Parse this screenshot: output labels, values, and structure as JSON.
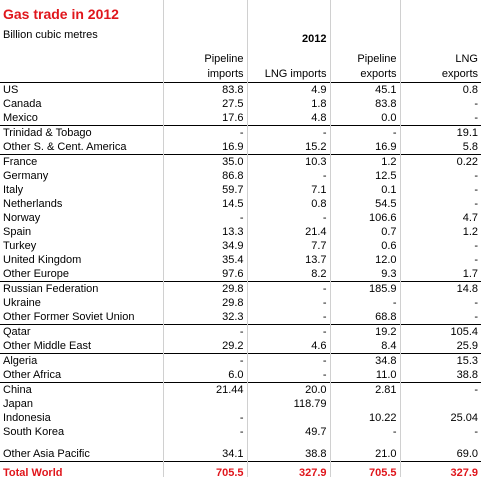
{
  "header": {
    "title": "Gas trade in 2012",
    "unit": "Billion cubic metres",
    "year": "2012",
    "columns": [
      "Pipeline imports",
      "LNG imports",
      "Pipeline exports",
      "LNG exports"
    ]
  },
  "table": {
    "groups": [
      [
        [
          "US",
          "83.8",
          "4.9",
          "45.1",
          "0.8"
        ],
        [
          "Canada",
          "27.5",
          "1.8",
          "83.8",
          "-"
        ],
        [
          "Mexico",
          "17.6",
          "4.8",
          "0.0",
          "-"
        ]
      ],
      [
        [
          "Trinidad & Tobago",
          "-",
          "-",
          "-",
          "19.1"
        ],
        [
          "Other S. & Cent. America",
          "16.9",
          "15.2",
          "16.9",
          "5.8"
        ]
      ],
      [
        [
          "France",
          "35.0",
          "10.3",
          "1.2",
          "0.22"
        ],
        [
          "Germany",
          "86.8",
          "-",
          "12.5",
          "-"
        ],
        [
          "Italy",
          "59.7",
          "7.1",
          "0.1",
          "-"
        ],
        [
          "Netherlands",
          "14.5",
          "0.8",
          "54.5",
          "-"
        ],
        [
          "Norway",
          "-",
          "-",
          "106.6",
          "4.7"
        ],
        [
          "Spain",
          "13.3",
          "21.4",
          "0.7",
          "1.2"
        ],
        [
          "Turkey",
          "34.9",
          "7.7",
          "0.6",
          "-"
        ],
        [
          "United Kingdom",
          "35.4",
          "13.7",
          "12.0",
          "-"
        ],
        [
          "Other Europe",
          "97.6",
          "8.2",
          "9.3",
          "1.7"
        ]
      ],
      [
        [
          "Russian Federation",
          "29.8",
          "-",
          "185.9",
          "14.8"
        ],
        [
          "Ukraine",
          "29.8",
          "-",
          "-",
          "-"
        ],
        [
          "Other Former Soviet Union",
          "32.3",
          "-",
          "68.8",
          "-"
        ]
      ],
      [
        [
          "Qatar",
          "-",
          "-",
          "19.2",
          "105.4"
        ],
        [
          "Other Middle East",
          "29.2",
          "4.6",
          "8.4",
          "25.9"
        ]
      ],
      [
        [
          "Algeria",
          "-",
          "-",
          "34.8",
          "15.3"
        ],
        [
          "Other Africa",
          "6.0",
          "-",
          "11.0",
          "38.8"
        ]
      ],
      [
        [
          "China",
          "21.44",
          "20.0",
          "2.81",
          "-"
        ],
        [
          "Japan",
          null,
          "118.79",
          null,
          null
        ],
        [
          "Indonesia",
          "-",
          null,
          "10.22",
          "25.04"
        ],
        [
          "South Korea",
          "-",
          "49.7",
          "-",
          "-"
        ],
        [
          "Other Asia Pacific",
          "34.1",
          "38.8",
          "21.0",
          "69.0"
        ]
      ]
    ],
    "total": [
      "Total World",
      "705.5",
      "327.9",
      "705.5",
      "327.9"
    ]
  }
}
